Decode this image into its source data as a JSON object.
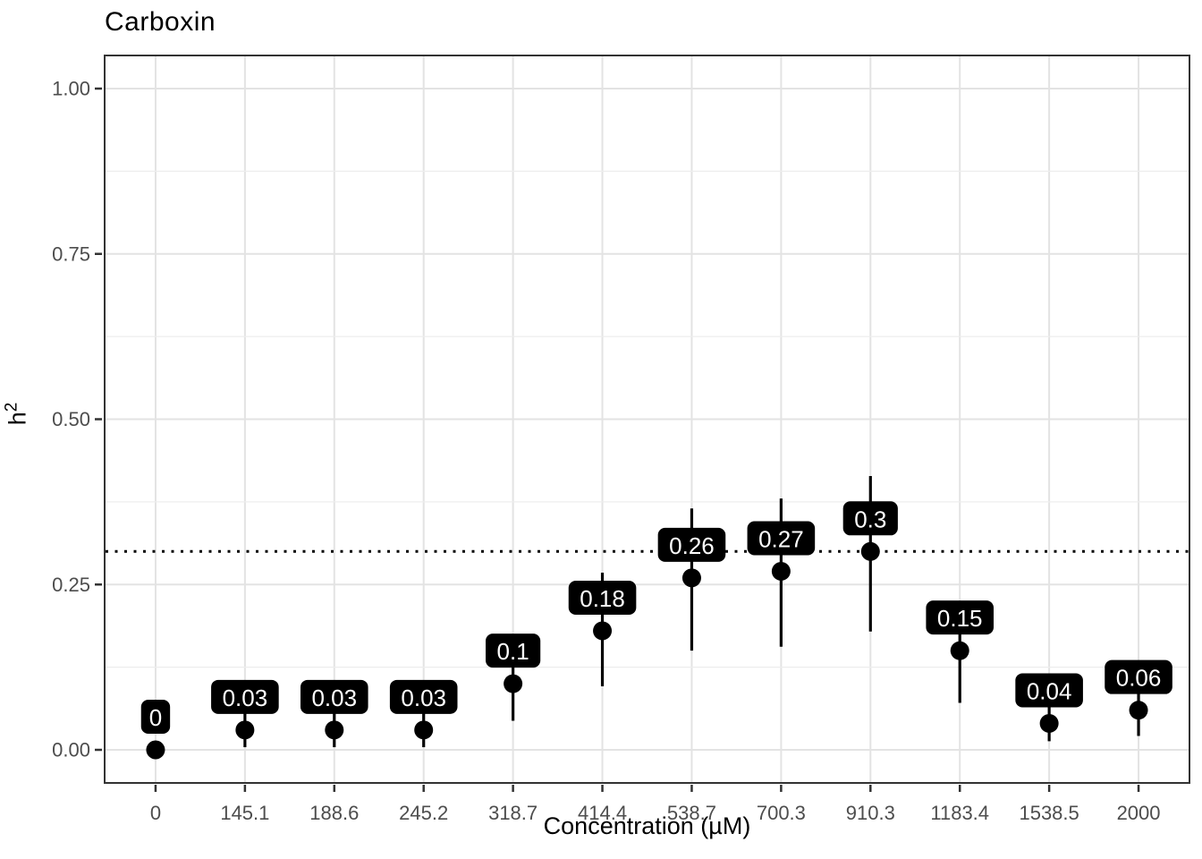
{
  "chart_data": {
    "type": "pointrange",
    "title": "Carboxin",
    "xlabel": "Concentration (µM)",
    "ylabel_base": "h",
    "ylabel_sup": "2",
    "categories": [
      "0",
      "145.1",
      "188.6",
      "245.2",
      "318.7",
      "414.4",
      "538.7",
      "700.3",
      "910.3",
      "1183.4",
      "1538.5",
      "2000"
    ],
    "values": [
      0,
      0.03,
      0.03,
      0.03,
      0.1,
      0.18,
      0.26,
      0.27,
      0.3,
      0.15,
      0.04,
      0.06
    ],
    "point_labels": [
      "0",
      "0.03",
      "0.03",
      "0.03",
      "0.1",
      "0.18",
      "0.26",
      "0.27",
      "0.3",
      "0.15",
      "0.04",
      "0.06"
    ],
    "error_low": [
      0,
      0.004,
      0.004,
      0.004,
      0.044,
      0.096,
      0.15,
      0.156,
      0.179,
      0.071,
      0.013,
      0.021
    ],
    "error_high": [
      0,
      0.057,
      0.057,
      0.058,
      0.158,
      0.268,
      0.365,
      0.38,
      0.414,
      0.222,
      0.076,
      0.1
    ],
    "reference_line_y": 0.3,
    "ylim": [
      -0.05,
      1.05
    ],
    "yticks": [
      0,
      0.25,
      0.5,
      0.75,
      1.0
    ],
    "ytick_labels": [
      "0.00",
      "0.25",
      "0.50",
      "0.75",
      "1.00"
    ],
    "yticks_minor": [
      0.125,
      0.375,
      0.625,
      0.875
    ],
    "legend": "none",
    "grid": "horizontal major+minor, vertical per category",
    "colors": {
      "background": "#ffffff",
      "panel_border": "#333333",
      "grid_major": "#e3e3e3",
      "grid_minor": "#ededed",
      "tick_mark": "#333333",
      "tick_label": "#4d4d4d",
      "point": "#000000",
      "error_bar": "#000000",
      "reference_line": "#000000",
      "label_bg": "#000000",
      "label_text": "#ffffff"
    }
  }
}
